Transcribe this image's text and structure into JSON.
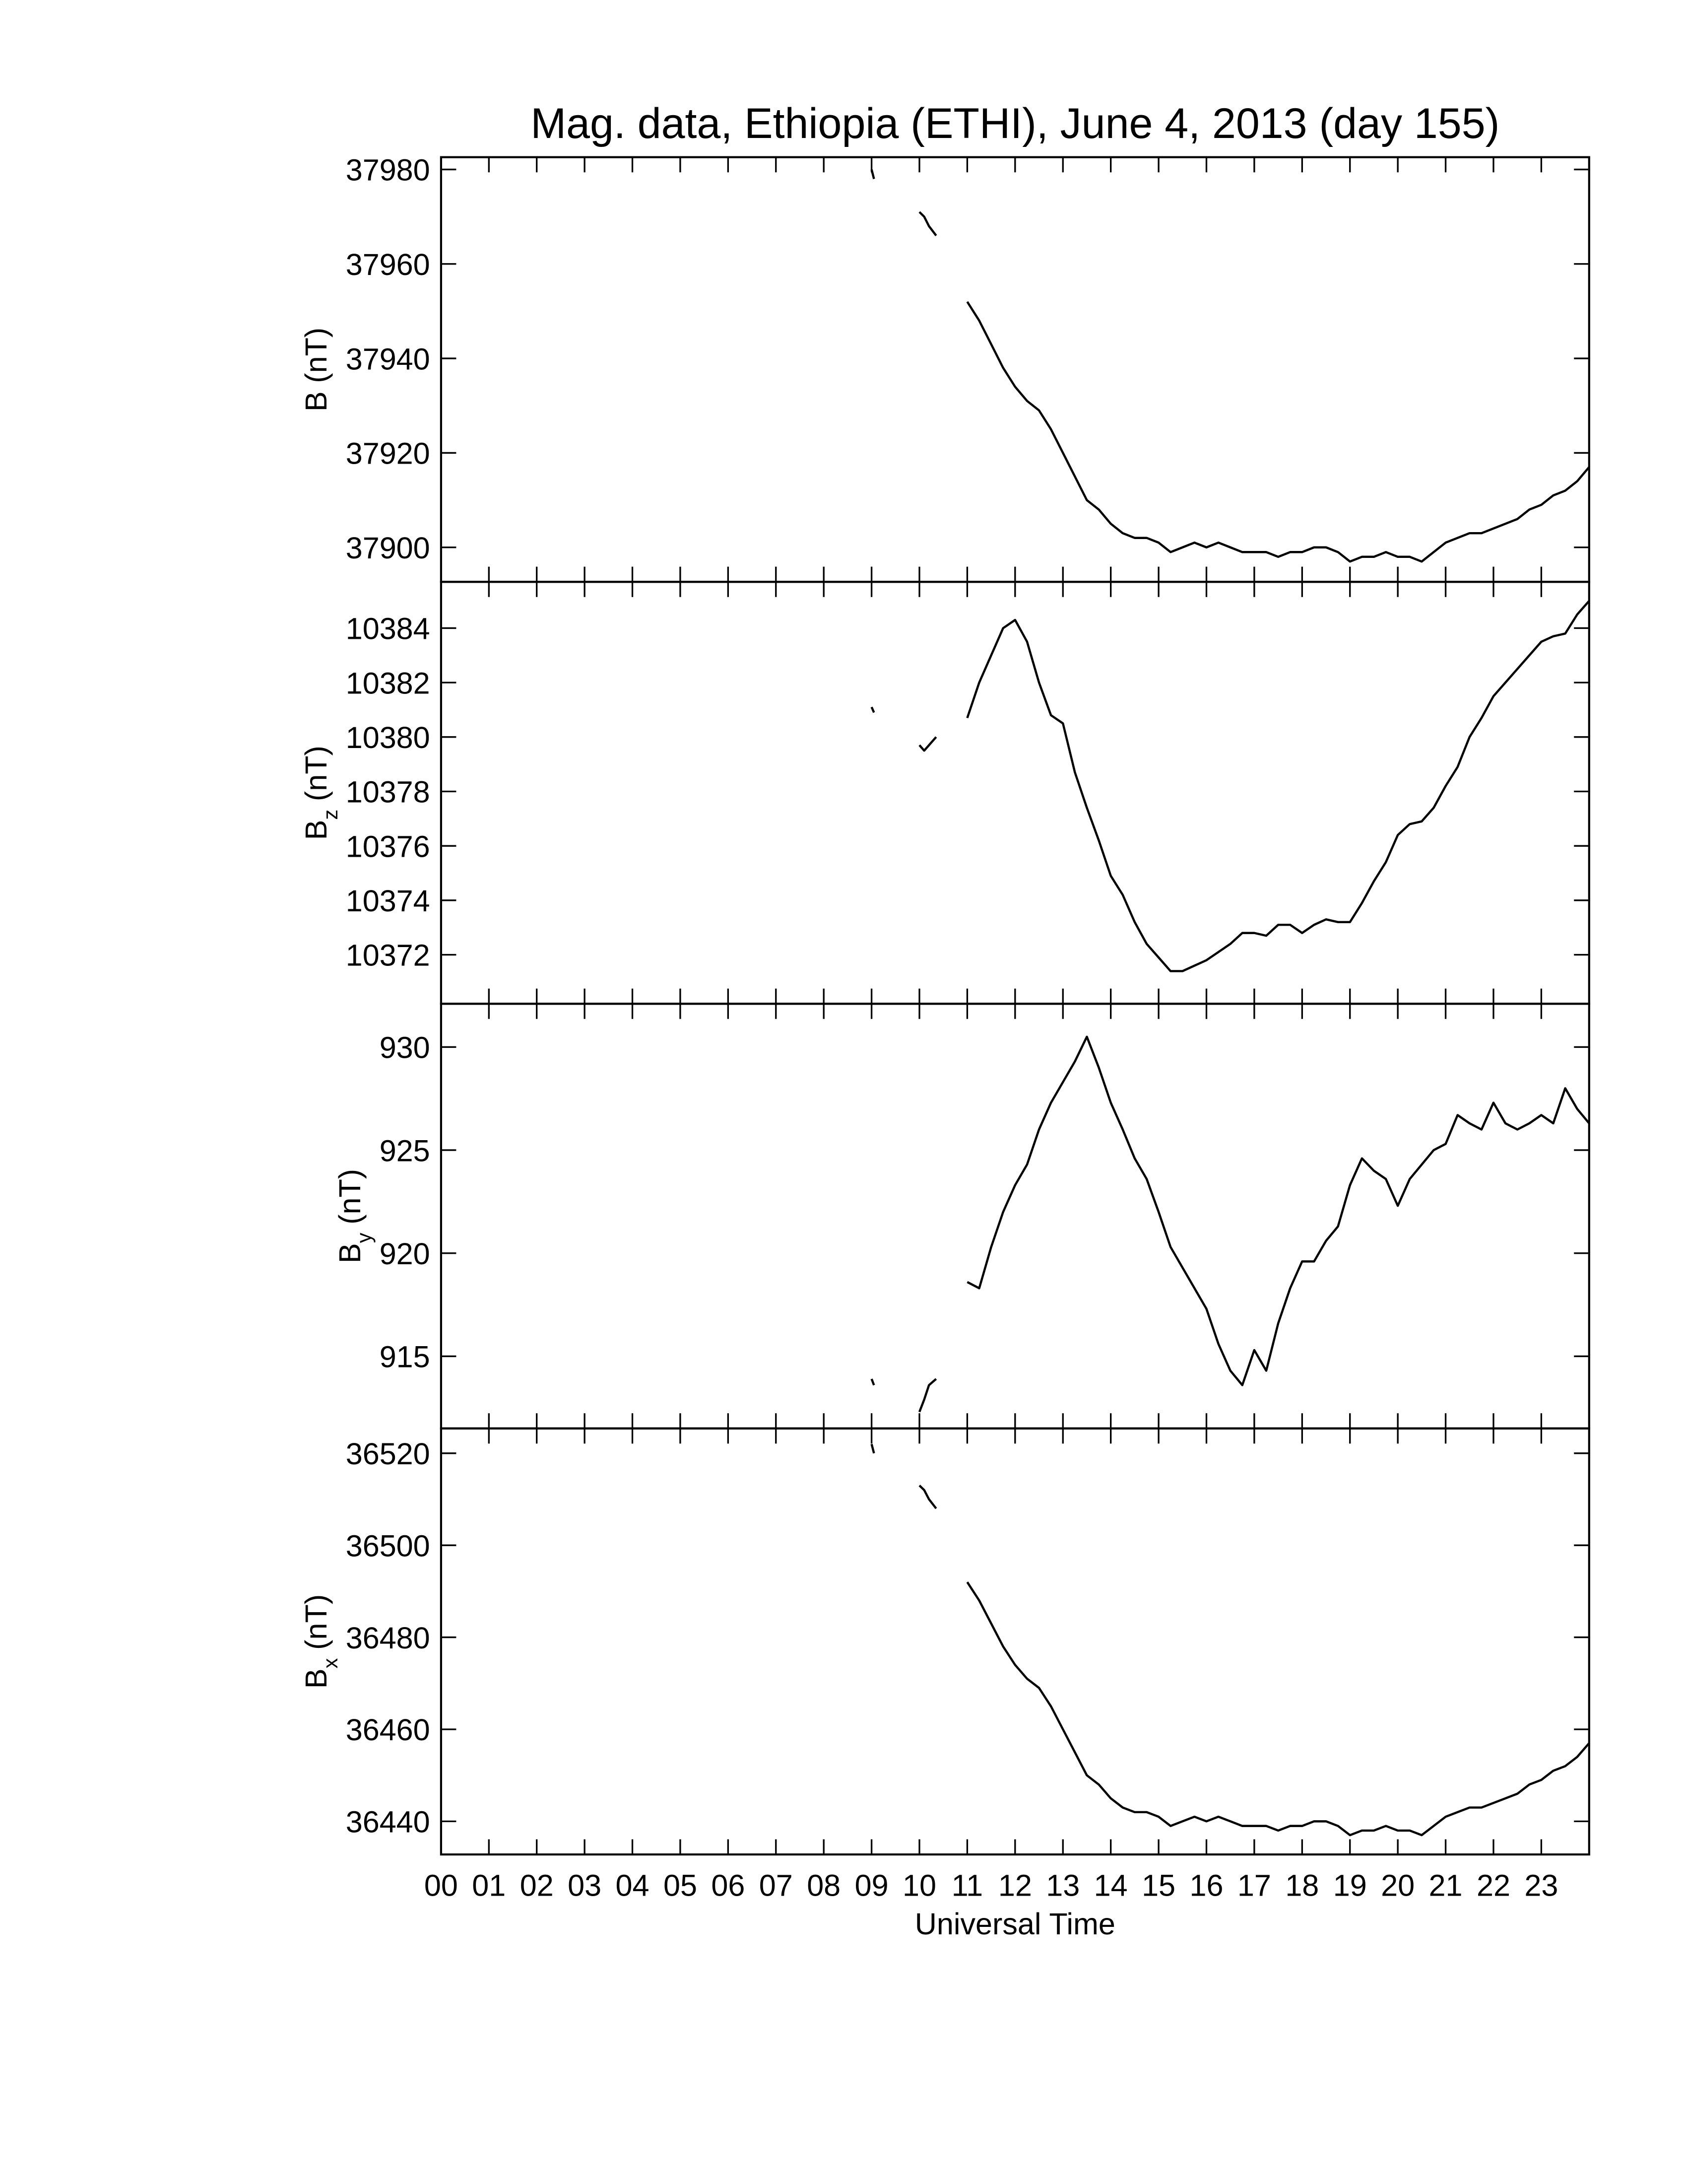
{
  "chart_data": [
    {
      "type": "line",
      "title": "Mag. data, Ethiopia (ETHI), June 4, 2013 (day 155)",
      "ylabel": "B",
      "ylabel_unit": "(nT)",
      "color": "#000000",
      "xlim": [
        0,
        24
      ],
      "ylim": [
        37892.7,
        37982.6
      ],
      "yticks": [
        37900,
        37920,
        37940,
        37960,
        37980
      ],
      "x": [
        9.0,
        9.05,
        9.5,
        10.0,
        10.1,
        10.2,
        10.35,
        10.7,
        11.0,
        11.25,
        11.5,
        11.75,
        12.0,
        12.25,
        12.5,
        12.75,
        13.0,
        13.25,
        13.5,
        13.75,
        14.0,
        14.25,
        14.5,
        14.75,
        15.0,
        15.25,
        15.5,
        15.75,
        16.0,
        16.25,
        16.5,
        16.75,
        17.0,
        17.25,
        17.5,
        17.75,
        18.0,
        18.25,
        18.5,
        18.75,
        19.0,
        19.25,
        19.5,
        19.75,
        20.0,
        20.25,
        20.5,
        20.75,
        21.0,
        21.25,
        21.5,
        21.75,
        22.0,
        22.25,
        22.5,
        22.75,
        23.0,
        23.25,
        23.5,
        23.75,
        24.0
      ],
      "values": [
        37980,
        37978,
        null,
        37971,
        37970,
        37968,
        37966,
        null,
        37952,
        37948,
        37943,
        37938,
        37934,
        37931,
        37929,
        37925,
        37920,
        37915,
        37910,
        37908,
        37905,
        37903,
        37902,
        37902,
        37901,
        37899,
        37900,
        37901,
        37900,
        37901,
        37900,
        37899,
        37899,
        37899,
        37898,
        37899,
        37899,
        37900,
        37900,
        37899,
        37897,
        37898,
        37898,
        37899,
        37898,
        37898,
        37897,
        37899,
        37901,
        37902,
        37903,
        37903,
        37904,
        37905,
        37906,
        37908,
        37909,
        37911,
        37912,
        37914,
        37917
      ]
    },
    {
      "type": "line",
      "ylabel": "B",
      "ylabel_subscript": "z",
      "ylabel_unit": "(nT)",
      "color": "#000000",
      "xlim": [
        0,
        24
      ],
      "ylim": [
        10370.2,
        10385.7
      ],
      "yticks": [
        10372,
        10374,
        10376,
        10378,
        10380,
        10382,
        10384
      ],
      "x": [
        9.0,
        9.05,
        9.5,
        10.0,
        10.1,
        10.2,
        10.35,
        10.7,
        11.0,
        11.25,
        11.5,
        11.75,
        12.0,
        12.25,
        12.5,
        12.75,
        13.0,
        13.25,
        13.5,
        13.75,
        14.0,
        14.25,
        14.5,
        14.75,
        15.0,
        15.25,
        15.5,
        15.75,
        16.0,
        16.25,
        16.5,
        16.75,
        17.0,
        17.25,
        17.5,
        17.75,
        18.0,
        18.25,
        18.5,
        18.75,
        19.0,
        19.25,
        19.5,
        19.75,
        20.0,
        20.25,
        20.5,
        20.75,
        21.0,
        21.25,
        21.5,
        21.75,
        22.0,
        22.25,
        22.5,
        22.75,
        23.0,
        23.25,
        23.5,
        23.75,
        24.0
      ],
      "values": [
        10381.1,
        10380.9,
        null,
        10379.7,
        10379.5,
        10379.7,
        10380.0,
        null,
        10380.7,
        10382,
        10383,
        10384,
        10384.3,
        10383.5,
        10382,
        10380.8,
        10380.5,
        10378.7,
        10377.4,
        10376.2,
        10374.9,
        10374.2,
        10373.2,
        10372.4,
        10371.9,
        10371.4,
        10371.4,
        10371.6,
        10371.8,
        10372.1,
        10372.4,
        10372.8,
        10372.8,
        10372.7,
        10373.1,
        10373.1,
        10372.8,
        10373.1,
        10373.3,
        10373.2,
        10373.2,
        10373.9,
        10374.7,
        10375.4,
        10376.4,
        10376.8,
        10376.9,
        10377.4,
        10378.2,
        10378.9,
        10380,
        10380.7,
        10381.5,
        10382,
        10382.5,
        10383,
        10383.5,
        10383.7,
        10383.8,
        10384.5,
        10385
      ]
    },
    {
      "type": "line",
      "ylabel": "B",
      "ylabel_subscript": "y",
      "ylabel_unit": "(nT)",
      "color": "#000000",
      "xlim": [
        0,
        24
      ],
      "ylim": [
        911.5,
        932.1
      ],
      "yticks": [
        915,
        920,
        925,
        930
      ],
      "x": [
        9.0,
        9.05,
        9.5,
        10.0,
        10.1,
        10.2,
        10.35,
        10.7,
        11.0,
        11.25,
        11.5,
        11.75,
        12.0,
        12.25,
        12.5,
        12.75,
        13.0,
        13.25,
        13.5,
        13.75,
        14.0,
        14.25,
        14.5,
        14.75,
        15.0,
        15.25,
        15.5,
        15.75,
        16.0,
        16.25,
        16.5,
        16.75,
        17.0,
        17.25,
        17.5,
        17.75,
        18.0,
        18.25,
        18.5,
        18.75,
        19.0,
        19.25,
        19.5,
        19.75,
        20.0,
        20.25,
        20.5,
        20.75,
        21.0,
        21.25,
        21.5,
        21.75,
        22.0,
        22.25,
        22.5,
        22.75,
        23.0,
        23.25,
        23.5,
        23.75,
        24.0
      ],
      "values": [
        913.9,
        913.6,
        null,
        912.3,
        912.9,
        913.6,
        913.9,
        null,
        918.6,
        918.3,
        920.3,
        922,
        923.3,
        924.3,
        926,
        927.3,
        928.3,
        929.3,
        930.5,
        929,
        927.3,
        926,
        924.6,
        923.6,
        922,
        920.3,
        919.3,
        918.3,
        917.3,
        915.6,
        914.3,
        913.6,
        915.3,
        914.3,
        916.6,
        918.3,
        919.6,
        919.6,
        920.6,
        921.3,
        923.3,
        924.6,
        924,
        923.6,
        922.3,
        923.6,
        924.3,
        925,
        925.3,
        926.7,
        926.3,
        926,
        927.3,
        926.3,
        926,
        926.3,
        926.7,
        926.3,
        928,
        927,
        926.3
      ]
    },
    {
      "type": "line",
      "ylabel": "B",
      "ylabel_subscript": "x",
      "ylabel_unit": "(nT)",
      "color": "#000000",
      "xlabel": "Universal Time",
      "xlim": [
        0,
        24
      ],
      "ylim": [
        36432.8,
        36525.4
      ],
      "yticks": [
        36440,
        36460,
        36480,
        36500,
        36520
      ],
      "xticks": [
        {
          "value": 0,
          "label": "00"
        },
        {
          "value": 1,
          "label": "01"
        },
        {
          "value": 2,
          "label": "02"
        },
        {
          "value": 3,
          "label": "03"
        },
        {
          "value": 4,
          "label": "04"
        },
        {
          "value": 5,
          "label": "05"
        },
        {
          "value": 6,
          "label": "06"
        },
        {
          "value": 7,
          "label": "07"
        },
        {
          "value": 8,
          "label": "08"
        },
        {
          "value": 9,
          "label": "09"
        },
        {
          "value": 10,
          "label": "10"
        },
        {
          "value": 11,
          "label": "11"
        },
        {
          "value": 12,
          "label": "12"
        },
        {
          "value": 13,
          "label": "13"
        },
        {
          "value": 14,
          "label": "14"
        },
        {
          "value": 15,
          "label": "15"
        },
        {
          "value": 16,
          "label": "16"
        },
        {
          "value": 17,
          "label": "17"
        },
        {
          "value": 18,
          "label": "18"
        },
        {
          "value": 19,
          "label": "19"
        },
        {
          "value": 20,
          "label": "20"
        },
        {
          "value": 21,
          "label": "21"
        },
        {
          "value": 22,
          "label": "22"
        },
        {
          "value": 23,
          "label": "23"
        }
      ],
      "x": [
        9.0,
        9.05,
        9.5,
        10.0,
        10.1,
        10.2,
        10.35,
        10.7,
        11.0,
        11.25,
        11.5,
        11.75,
        12.0,
        12.25,
        12.5,
        12.75,
        13.0,
        13.25,
        13.5,
        13.75,
        14.0,
        14.25,
        14.5,
        14.75,
        15.0,
        15.25,
        15.5,
        15.75,
        16.0,
        16.25,
        16.5,
        16.75,
        17.0,
        17.25,
        17.5,
        17.75,
        18.0,
        18.25,
        18.5,
        18.75,
        19.0,
        19.25,
        19.5,
        19.75,
        20.0,
        20.25,
        20.5,
        20.75,
        21.0,
        21.25,
        21.5,
        21.75,
        22.0,
        22.25,
        22.5,
        22.75,
        23.0,
        23.25,
        23.5,
        23.75,
        24.0
      ],
      "values": [
        36522,
        36520,
        null,
        36513,
        36512,
        36510,
        36508,
        null,
        36492,
        36488,
        36483,
        36478,
        36474,
        36471,
        36469,
        36465,
        36460,
        36455,
        36450,
        36448,
        36445,
        36443,
        36442,
        36442,
        36441,
        36439,
        36440,
        36441,
        36440,
        36441,
        36440,
        36439,
        36439,
        36439,
        36438,
        36439,
        36439,
        36440,
        36440,
        36439,
        36437,
        36438,
        36438,
        36439,
        36438,
        36438,
        36437,
        36439,
        36441,
        36442,
        36443,
        36443,
        36444,
        36445,
        36446,
        36448,
        36449,
        36451,
        36452,
        36454,
        36457
      ]
    }
  ]
}
